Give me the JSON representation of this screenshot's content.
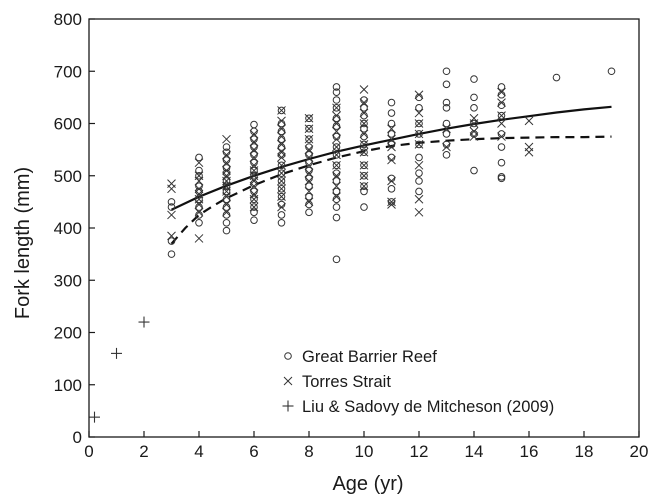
{
  "chart_data": {
    "type": "scatter",
    "xlabel": "Age (yr)",
    "ylabel": "Fork length (mm)",
    "xlim": [
      0,
      20
    ],
    "ylim": [
      0,
      800
    ],
    "xticks": [
      0,
      2,
      4,
      6,
      8,
      10,
      12,
      14,
      16,
      18,
      20
    ],
    "yticks": [
      0,
      100,
      200,
      300,
      400,
      500,
      600,
      700,
      800
    ],
    "grid": false,
    "legend_position": "bottom-right",
    "series": [
      {
        "name": "Great Barrier Reef",
        "marker": "circle",
        "points": [
          [
            3,
            350
          ],
          [
            3,
            375
          ],
          [
            3,
            440
          ],
          [
            3,
            450
          ],
          [
            4,
            410
          ],
          [
            4,
            425
          ],
          [
            4,
            440
          ],
          [
            4,
            455
          ],
          [
            4,
            470
          ],
          [
            4,
            480
          ],
          [
            4,
            500
          ],
          [
            4,
            510
          ],
          [
            4,
            535
          ],
          [
            5,
            395
          ],
          [
            5,
            410
          ],
          [
            5,
            425
          ],
          [
            5,
            440
          ],
          [
            5,
            455
          ],
          [
            5,
            470
          ],
          [
            5,
            480
          ],
          [
            5,
            490
          ],
          [
            5,
            505
          ],
          [
            5,
            515
          ],
          [
            5,
            530
          ],
          [
            5,
            545
          ],
          [
            5,
            555
          ],
          [
            6,
            415
          ],
          [
            6,
            430
          ],
          [
            6,
            440
          ],
          [
            6,
            455
          ],
          [
            6,
            470
          ],
          [
            6,
            485
          ],
          [
            6,
            500
          ],
          [
            6,
            510
          ],
          [
            6,
            525
          ],
          [
            6,
            540
          ],
          [
            6,
            555
          ],
          [
            6,
            570
          ],
          [
            6,
            585
          ],
          [
            6,
            598
          ],
          [
            7,
            410
          ],
          [
            7,
            425
          ],
          [
            7,
            445
          ],
          [
            7,
            460
          ],
          [
            7,
            475
          ],
          [
            7,
            490
          ],
          [
            7,
            505
          ],
          [
            7,
            520
          ],
          [
            7,
            540
          ],
          [
            7,
            555
          ],
          [
            7,
            570
          ],
          [
            7,
            585
          ],
          [
            7,
            600
          ],
          [
            7,
            625
          ],
          [
            8,
            430
          ],
          [
            8,
            445
          ],
          [
            8,
            460
          ],
          [
            8,
            480
          ],
          [
            8,
            495
          ],
          [
            8,
            510
          ],
          [
            8,
            525
          ],
          [
            8,
            540
          ],
          [
            8,
            555
          ],
          [
            8,
            570
          ],
          [
            8,
            590
          ],
          [
            8,
            610
          ],
          [
            9,
            340
          ],
          [
            9,
            420
          ],
          [
            9,
            440
          ],
          [
            9,
            455
          ],
          [
            9,
            470
          ],
          [
            9,
            490
          ],
          [
            9,
            505
          ],
          [
            9,
            520
          ],
          [
            9,
            540
          ],
          [
            9,
            555
          ],
          [
            9,
            575
          ],
          [
            9,
            595
          ],
          [
            9,
            610
          ],
          [
            9,
            630
          ],
          [
            9,
            645
          ],
          [
            9,
            660
          ],
          [
            9,
            670
          ],
          [
            10,
            440
          ],
          [
            10,
            470
          ],
          [
            10,
            480
          ],
          [
            10,
            500
          ],
          [
            10,
            520
          ],
          [
            10,
            545
          ],
          [
            10,
            560
          ],
          [
            10,
            575
          ],
          [
            10,
            590
          ],
          [
            10,
            600
          ],
          [
            10,
            615
          ],
          [
            10,
            630
          ],
          [
            10,
            645
          ],
          [
            11,
            450
          ],
          [
            11,
            475
          ],
          [
            11,
            495
          ],
          [
            11,
            535
          ],
          [
            11,
            560
          ],
          [
            11,
            580
          ],
          [
            11,
            600
          ],
          [
            11,
            620
          ],
          [
            11,
            640
          ],
          [
            12,
            470
          ],
          [
            12,
            490
          ],
          [
            12,
            505
          ],
          [
            12,
            535
          ],
          [
            12,
            560
          ],
          [
            12,
            580
          ],
          [
            12,
            600
          ],
          [
            12,
            630
          ],
          [
            12,
            650
          ],
          [
            13,
            540
          ],
          [
            13,
            560
          ],
          [
            13,
            580
          ],
          [
            13,
            600
          ],
          [
            13,
            630
          ],
          [
            13,
            640
          ],
          [
            13,
            675
          ],
          [
            13,
            700
          ],
          [
            14,
            510
          ],
          [
            14,
            580
          ],
          [
            14,
            600
          ],
          [
            14,
            630
          ],
          [
            14,
            650
          ],
          [
            14,
            685
          ],
          [
            15,
            495
          ],
          [
            15,
            498
          ],
          [
            15,
            525
          ],
          [
            15,
            555
          ],
          [
            15,
            580
          ],
          [
            15,
            615
          ],
          [
            15,
            635
          ],
          [
            15,
            655
          ],
          [
            15,
            670
          ],
          [
            17,
            688
          ],
          [
            19,
            700
          ]
        ]
      },
      {
        "name": "Torres Strait",
        "marker": "x",
        "points": [
          [
            3,
            385
          ],
          [
            3,
            425
          ],
          [
            3,
            475
          ],
          [
            3,
            485
          ],
          [
            4,
            380
          ],
          [
            4,
            430
          ],
          [
            4,
            445
          ],
          [
            4,
            455
          ],
          [
            4,
            465
          ],
          [
            4,
            475
          ],
          [
            4,
            490
          ],
          [
            4,
            500
          ],
          [
            4,
            525
          ],
          [
            5,
            430
          ],
          [
            5,
            445
          ],
          [
            5,
            460
          ],
          [
            5,
            470
          ],
          [
            5,
            480
          ],
          [
            5,
            490
          ],
          [
            5,
            500
          ],
          [
            5,
            510
          ],
          [
            5,
            525
          ],
          [
            5,
            540
          ],
          [
            5,
            570
          ],
          [
            6,
            440
          ],
          [
            6,
            455
          ],
          [
            6,
            465
          ],
          [
            6,
            480
          ],
          [
            6,
            490
          ],
          [
            6,
            500
          ],
          [
            6,
            510
          ],
          [
            6,
            520
          ],
          [
            6,
            535
          ],
          [
            6,
            550
          ],
          [
            6,
            565
          ],
          [
            6,
            580
          ],
          [
            7,
            440
          ],
          [
            7,
            460
          ],
          [
            7,
            475
          ],
          [
            7,
            490
          ],
          [
            7,
            505
          ],
          [
            7,
            520
          ],
          [
            7,
            535
          ],
          [
            7,
            545
          ],
          [
            7,
            560
          ],
          [
            7,
            575
          ],
          [
            7,
            590
          ],
          [
            7,
            605
          ],
          [
            7,
            625
          ],
          [
            8,
            450
          ],
          [
            8,
            470
          ],
          [
            8,
            490
          ],
          [
            8,
            505
          ],
          [
            8,
            520
          ],
          [
            8,
            535
          ],
          [
            8,
            550
          ],
          [
            8,
            570
          ],
          [
            8,
            590
          ],
          [
            8,
            610
          ],
          [
            9,
            460
          ],
          [
            9,
            480
          ],
          [
            9,
            500
          ],
          [
            9,
            520
          ],
          [
            9,
            540
          ],
          [
            9,
            555
          ],
          [
            9,
            570
          ],
          [
            9,
            585
          ],
          [
            9,
            600
          ],
          [
            9,
            615
          ],
          [
            9,
            630
          ],
          [
            10,
            480
          ],
          [
            10,
            500
          ],
          [
            10,
            520
          ],
          [
            10,
            545
          ],
          [
            10,
            560
          ],
          [
            10,
            580
          ],
          [
            10,
            600
          ],
          [
            10,
            620
          ],
          [
            10,
            640
          ],
          [
            10,
            665
          ],
          [
            11,
            445
          ],
          [
            11,
            450
          ],
          [
            11,
            490
          ],
          [
            11,
            530
          ],
          [
            11,
            555
          ],
          [
            11,
            570
          ],
          [
            11,
            590
          ],
          [
            12,
            430
          ],
          [
            12,
            455
          ],
          [
            12,
            520
          ],
          [
            12,
            560
          ],
          [
            12,
            580
          ],
          [
            12,
            600
          ],
          [
            12,
            620
          ],
          [
            12,
            655
          ],
          [
            13,
            555
          ],
          [
            13,
            590
          ],
          [
            14,
            575
          ],
          [
            14,
            585
          ],
          [
            14,
            600
          ],
          [
            14,
            610
          ],
          [
            15,
            575
          ],
          [
            15,
            600
          ],
          [
            15,
            615
          ],
          [
            15,
            640
          ],
          [
            15,
            660
          ],
          [
            16,
            545
          ],
          [
            16,
            555
          ],
          [
            16,
            605
          ]
        ]
      },
      {
        "name": "Liu & Sadovy de Mitcheson (2009)",
        "marker": "plus",
        "points": [
          [
            0.2,
            38
          ],
          [
            1,
            160
          ],
          [
            2,
            220
          ]
        ]
      }
    ],
    "curves": [
      {
        "style": "solid",
        "points": [
          [
            3,
            435
          ],
          [
            4,
            460
          ],
          [
            5,
            481
          ],
          [
            6,
            500
          ],
          [
            7,
            517
          ],
          [
            8,
            532
          ],
          [
            9,
            546
          ],
          [
            10,
            558
          ],
          [
            11,
            569
          ],
          [
            12,
            580
          ],
          [
            13,
            590
          ],
          [
            14,
            599
          ],
          [
            15,
            607
          ],
          [
            16,
            614
          ],
          [
            17,
            621
          ],
          [
            18,
            627
          ],
          [
            19,
            632
          ]
        ]
      },
      {
        "style": "dashed",
        "points": [
          [
            3,
            370
          ],
          [
            3.5,
            400
          ],
          [
            4,
            425
          ],
          [
            4.5,
            442
          ],
          [
            5,
            457
          ],
          [
            6,
            482
          ],
          [
            7,
            503
          ],
          [
            8,
            520
          ],
          [
            9,
            535
          ],
          [
            10,
            547
          ],
          [
            11,
            557
          ],
          [
            12,
            563
          ],
          [
            13,
            567
          ],
          [
            14,
            570
          ],
          [
            15,
            572
          ],
          [
            16,
            573
          ],
          [
            17,
            574
          ],
          [
            18,
            574
          ],
          [
            19,
            575
          ]
        ]
      }
    ]
  }
}
